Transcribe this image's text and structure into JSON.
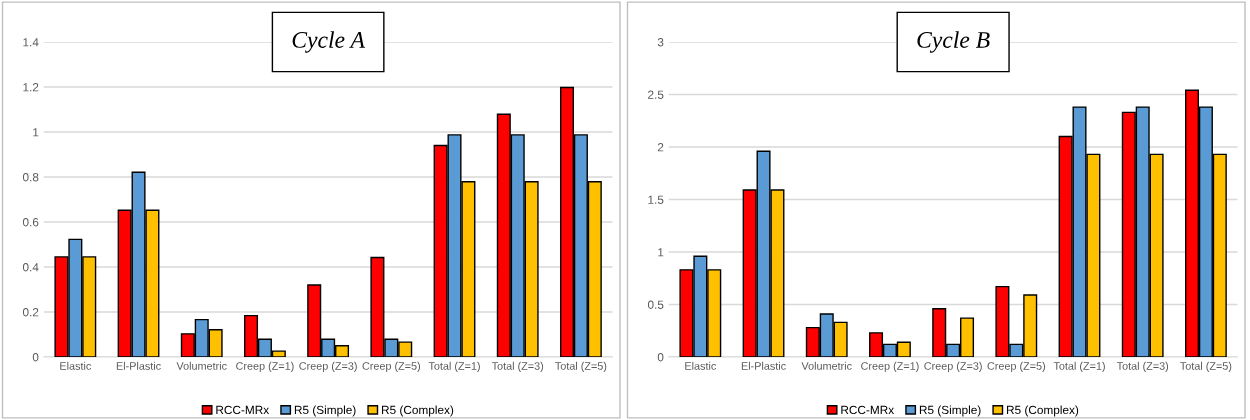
{
  "chart_data": [
    {
      "type": "bar",
      "title": "Cycle A",
      "categories": [
        "Elastic",
        "El-Plastic",
        "Volumetric",
        "Creep (Z=1)",
        "Creep (Z=3)",
        "Creep (Z=5)",
        "Total (Z=1)",
        "Total (Z=3)",
        "Total (Z=5)"
      ],
      "series": [
        {
          "name": "RCC-MRx",
          "color": "#ff0000",
          "values": [
            0.445,
            0.652,
            0.103,
            0.184,
            0.32,
            0.442,
            0.94,
            1.079,
            1.198
          ]
        },
        {
          "name": "R5 (Simple)",
          "color": "#5b9bd5",
          "values": [
            0.523,
            0.821,
            0.166,
            0.079,
            0.079,
            0.079,
            0.987,
            0.987,
            0.987
          ]
        },
        {
          "name": "R5 (Complex)",
          "color": "#ffc000",
          "values": [
            0.445,
            0.652,
            0.121,
            0.026,
            0.05,
            0.066,
            0.779,
            0.779,
            0.779
          ]
        }
      ],
      "ylim": [
        0,
        1.4
      ],
      "yticks": [
        0,
        0.2,
        0.4,
        0.6,
        0.8,
        1,
        1.2,
        1.4
      ],
      "grid": "y",
      "legend": "bottom"
    },
    {
      "type": "bar",
      "title": "Cycle B",
      "categories": [
        "Elastic",
        "El-Plastic",
        "Volumetric",
        "Creep (Z=1)",
        "Creep (Z=3)",
        "Creep (Z=5)",
        "Total (Z=1)",
        "Total (Z=3)",
        "Total (Z=5)"
      ],
      "series": [
        {
          "name": "RCC-MRx",
          "color": "#ff0000",
          "values": [
            0.83,
            1.59,
            0.28,
            0.23,
            0.46,
            0.67,
            2.1,
            2.33,
            2.54
          ]
        },
        {
          "name": "R5 (Simple)",
          "color": "#5b9bd5",
          "values": [
            0.96,
            1.96,
            0.41,
            0.12,
            0.12,
            0.12,
            2.38,
            2.38,
            2.38
          ]
        },
        {
          "name": "R5 (Complex)",
          "color": "#ffc000",
          "values": [
            0.83,
            1.59,
            0.33,
            0.14,
            0.37,
            0.59,
            1.93,
            1.93,
            1.93
          ]
        }
      ],
      "ylim": [
        0,
        3
      ],
      "yticks": [
        0,
        0.5,
        1,
        1.5,
        2,
        2.5,
        3
      ],
      "grid": "y",
      "legend": "bottom"
    }
  ]
}
